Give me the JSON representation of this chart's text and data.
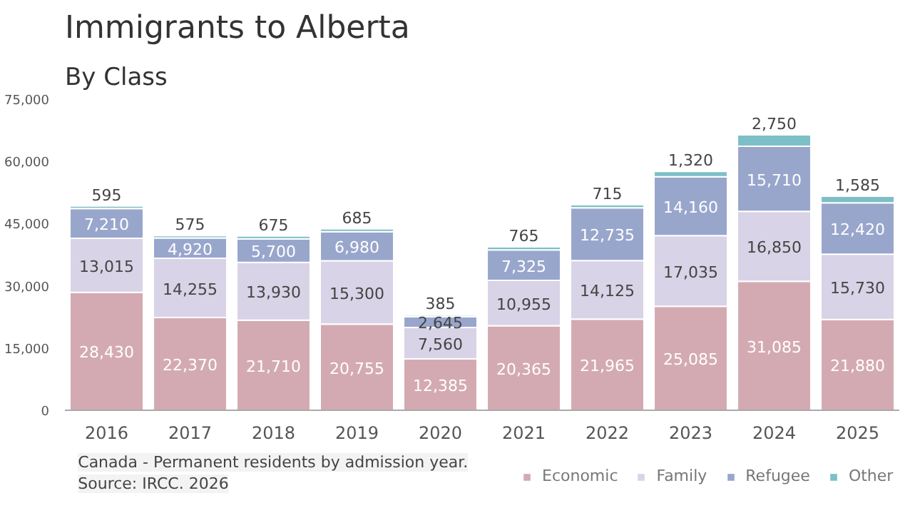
{
  "chart_data": {
    "type": "bar",
    "title": "Immigrants to Alberta",
    "subtitle": "By Class",
    "stacked": true,
    "legend": "bottom right",
    "grid": false,
    "categories": [
      "2016",
      "2017",
      "2018",
      "2019",
      "2020",
      "2021",
      "2022",
      "2023",
      "2024",
      "2025"
    ],
    "ylim": [
      0,
      75000
    ],
    "yticks": [
      {
        "value": 0,
        "label": "0"
      },
      {
        "value": 15000,
        "label": "15,000"
      },
      {
        "value": 30000,
        "label": "30,000"
      },
      {
        "value": 45000,
        "label": "45,000"
      },
      {
        "value": 60000,
        "label": "60,000"
      },
      {
        "value": 75000,
        "label": "75,000"
      }
    ],
    "series": [
      {
        "name": "Economic",
        "color": "#d4aab2",
        "values": [
          28430,
          22370,
          21710,
          20755,
          12385,
          20365,
          21965,
          25085,
          31085,
          21880
        ],
        "value_labels": [
          "28,430",
          "22,370",
          "21,710",
          "20,755",
          "12,385",
          "20,365",
          "21,965",
          "25,085",
          "31,085",
          "21,880"
        ]
      },
      {
        "name": "Family",
        "color": "#d8d3e6",
        "values": [
          13015,
          14255,
          13930,
          15300,
          7560,
          10955,
          14125,
          17035,
          16850,
          15730
        ],
        "value_labels": [
          "13,015",
          "14,255",
          "13,930",
          "15,300",
          "7,560",
          "10,955",
          "14,125",
          "17,035",
          "16,850",
          "15,730"
        ]
      },
      {
        "name": "Refugee",
        "color": "#99a6cc",
        "values": [
          7210,
          4920,
          5700,
          6980,
          2645,
          7325,
          12735,
          14160,
          15710,
          12420
        ],
        "value_labels": [
          "7,210",
          "4,920",
          "5,700",
          "6,980",
          "2,645",
          "7,325",
          "12,735",
          "14,160",
          "15,710",
          "12,420"
        ]
      },
      {
        "name": "Other",
        "color": "#7dbfc6",
        "values": [
          595,
          575,
          675,
          685,
          385,
          765,
          715,
          1320,
          2750,
          1585
        ],
        "value_labels": [
          "595",
          "575",
          "675",
          "685",
          "385",
          "765",
          "715",
          "1,320",
          "2,750",
          "1,585"
        ]
      }
    ],
    "annotations": [
      "Canada - Permanent residents by admission year.",
      "Source: IRCC. 2026"
    ]
  }
}
